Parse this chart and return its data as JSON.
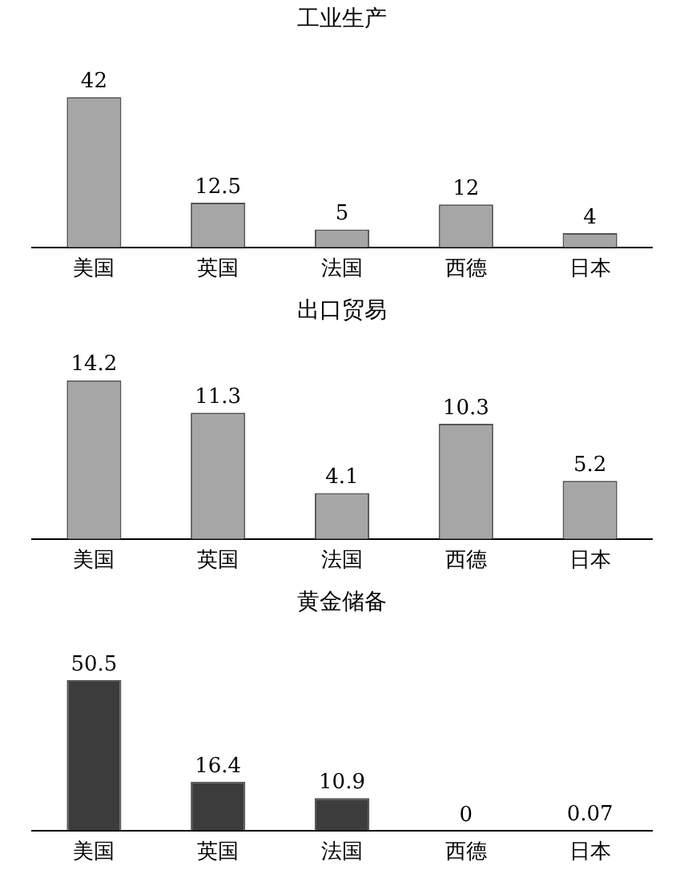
{
  "chart_data": [
    {
      "type": "bar",
      "title": "工业生产",
      "categories": [
        "美国",
        "英国",
        "法国",
        "西德",
        "日本"
      ],
      "values": [
        42,
        12.5,
        5,
        12,
        4
      ],
      "color": "#a6a6a6",
      "data_labels": true,
      "tick_labels": "x"
    },
    {
      "type": "bar",
      "title": "出口贸易",
      "categories": [
        "美国",
        "英国",
        "法国",
        "西德",
        "日本"
      ],
      "values": [
        14.2,
        11.3,
        4.1,
        10.3,
        5.2
      ],
      "color": "#a6a6a6",
      "data_labels": true,
      "tick_labels": "x"
    },
    {
      "type": "bar",
      "title": "黄金储备",
      "categories": [
        "美国",
        "英国",
        "法国",
        "西德",
        "日本"
      ],
      "values": [
        50.5,
        16.4,
        10.9,
        0,
        0.07
      ],
      "color": "#3c3c3c",
      "data_labels": true,
      "tick_labels": "x"
    }
  ]
}
